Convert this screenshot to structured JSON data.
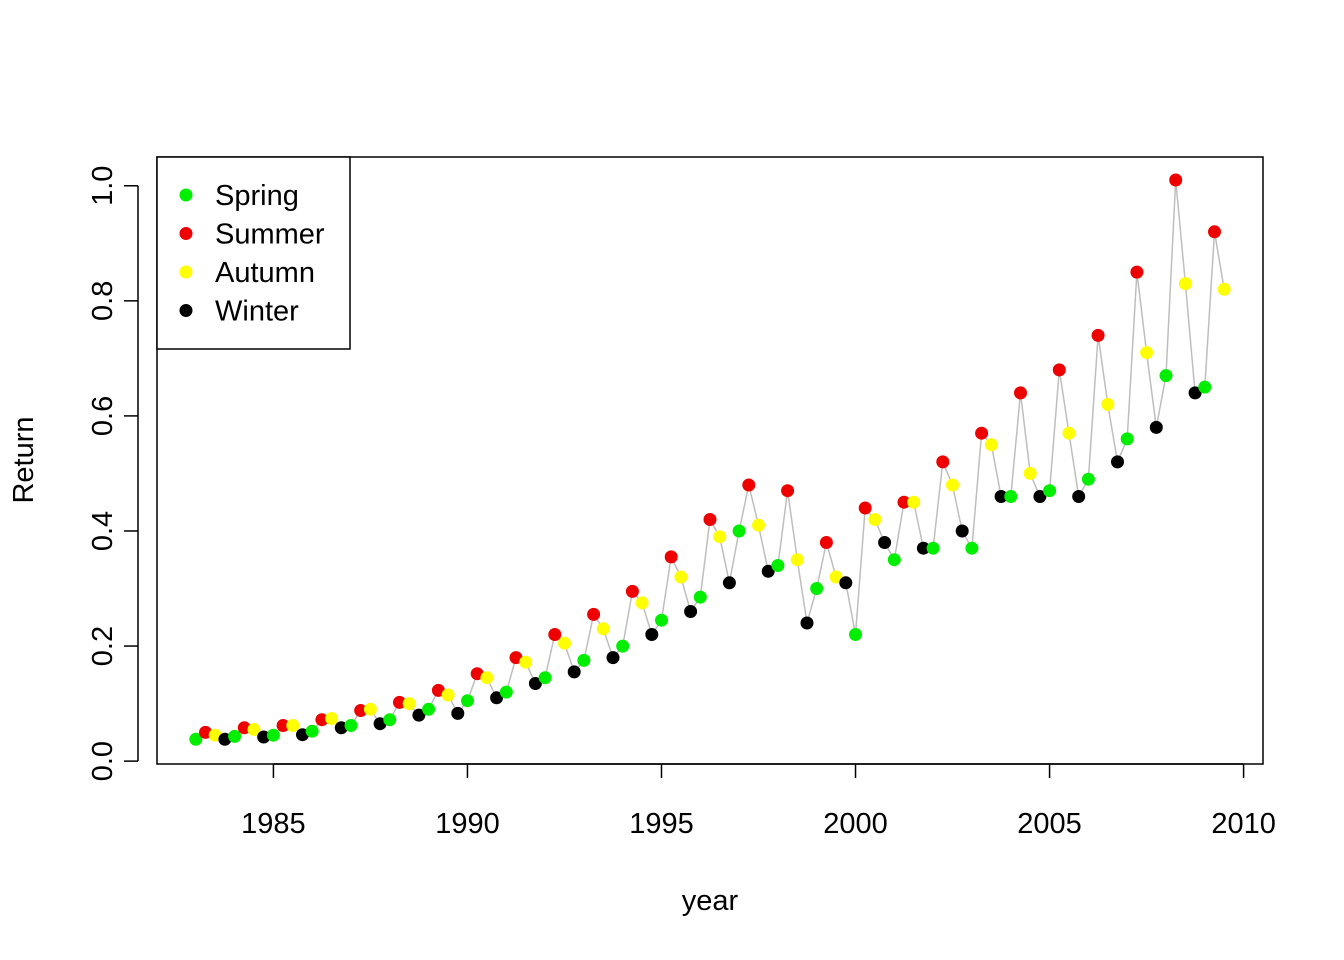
{
  "chart_data": {
    "type": "scatter",
    "xlabel": "year",
    "ylabel": "Return",
    "xlim": [
      1982.0,
      2010.5
    ],
    "ylim": [
      -0.005,
      1.05
    ],
    "x_ticks": [
      1985,
      1990,
      1995,
      2000,
      2005,
      2010
    ],
    "y_ticks": [
      0.0,
      0.2,
      0.4,
      0.6,
      0.8,
      1.0
    ],
    "x_tick_labels": [
      "1985",
      "1990",
      "1995",
      "2000",
      "2005",
      "2010"
    ],
    "y_tick_labels": [
      "0.0",
      "0.2",
      "0.4",
      "0.6",
      "0.8",
      "1.0"
    ],
    "grid": false,
    "legend_position": "top-left",
    "line_color": "#bebebe",
    "season_order": [
      "Spring",
      "Summer",
      "Autumn",
      "Winter"
    ],
    "season_colors": {
      "Spring": "#00ee00",
      "Summer": "#ee0000",
      "Autumn": "#ffff00",
      "Winter": "#000000"
    },
    "legend": [
      {
        "label": "Spring",
        "color": "#00ee00"
      },
      {
        "label": "Summer",
        "color": "#ee0000"
      },
      {
        "label": "Autumn",
        "color": "#ffff00"
      },
      {
        "label": "Winter",
        "color": "#000000"
      }
    ],
    "start_year": 1983,
    "values": [
      0.038,
      0.05,
      0.045,
      0.038,
      0.043,
      0.058,
      0.055,
      0.042,
      0.045,
      0.062,
      0.062,
      0.046,
      0.052,
      0.072,
      0.074,
      0.058,
      0.062,
      0.088,
      0.09,
      0.065,
      0.072,
      0.102,
      0.1,
      0.08,
      0.09,
      0.123,
      0.115,
      0.083,
      0.105,
      0.152,
      0.145,
      0.11,
      0.12,
      0.18,
      0.172,
      0.135,
      0.145,
      0.22,
      0.205,
      0.155,
      0.175,
      0.255,
      0.23,
      0.18,
      0.2,
      0.295,
      0.275,
      0.22,
      0.245,
      0.355,
      0.32,
      0.26,
      0.285,
      0.42,
      0.39,
      0.31,
      0.4,
      0.48,
      0.41,
      0.33,
      0.34,
      0.47,
      0.35,
      0.24,
      0.3,
      0.38,
      0.32,
      0.31,
      0.22,
      0.44,
      0.42,
      0.38,
      0.35,
      0.45,
      0.45,
      0.37,
      0.37,
      0.52,
      0.48,
      0.4,
      0.37,
      0.57,
      0.55,
      0.46,
      0.46,
      0.64,
      0.5,
      0.46,
      0.47,
      0.68,
      0.57,
      0.46,
      0.49,
      0.74,
      0.62,
      0.52,
      0.56,
      0.85,
      0.71,
      0.58,
      0.67,
      1.01,
      0.83,
      0.64,
      0.65,
      0.92,
      0.82
    ]
  }
}
